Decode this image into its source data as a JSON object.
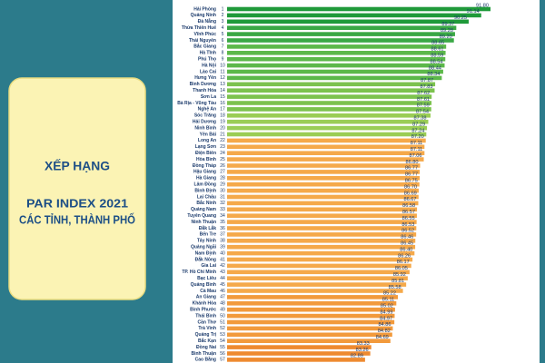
{
  "chart_data": {
    "type": "bar",
    "orientation": "horizontal",
    "title_lines": [
      "XẾP HẠNG",
      "PAR INDEX 2021",
      "CÁC TỈNH, THÀNH PHỐ"
    ],
    "categories": [
      "Hải Phòng",
      "Quảng Ninh",
      "Đà Nẵng",
      "Thừa Thiên Huế",
      "Vĩnh Phúc",
      "Thái Nguyên",
      "Bắc Giang",
      "Hà Tĩnh",
      "Phú Thọ",
      "Hà Nội",
      "Lào Cai",
      "Hưng Yên",
      "Bình Dương",
      "Thanh Hóa",
      "Sơn La",
      "Bà Rịa - Vũng Tàu",
      "Nghệ An",
      "Sóc Trăng",
      "Hải Dương",
      "Ninh Bình",
      "Yên Bái",
      "Long An",
      "Lạng Sơn",
      "Điện Biên",
      "Hòa Bình",
      "Đồng Tháp",
      "Hậu Giang",
      "Hà Giang",
      "Lâm Đồng",
      "Bình Định",
      "Lai Châu",
      "Bắc Ninh",
      "Quảng Nam",
      "Tuyên Quang",
      "Ninh Thuận",
      "Đắk Lắk",
      "Bến Tre",
      "Tây Ninh",
      "Quảng Ngãi",
      "Nam Định",
      "Đắk Nông",
      "Gia Lai",
      "TP. Hồ Chí Minh",
      "Bạc Liêu",
      "Quảng Bình",
      "Cà Mau",
      "An Giang",
      "Khánh Hòa",
      "Bình Phước",
      "Thái Bình",
      "Cần Thơ",
      "Trà Vinh",
      "Quảng Trị",
      "Bắc Kạn",
      "Đồng Nai",
      "Bình Thuận",
      "Cao Bằng"
    ],
    "ranks": [
      1,
      2,
      3,
      4,
      5,
      6,
      7,
      8,
      9,
      10,
      11,
      12,
      13,
      14,
      15,
      16,
      17,
      18,
      19,
      20,
      21,
      22,
      23,
      24,
      25,
      26,
      27,
      28,
      29,
      30,
      31,
      32,
      33,
      34,
      35,
      36,
      37,
      38,
      39,
      40,
      41,
      42,
      43,
      44,
      45,
      46,
      47,
      48,
      49,
      50,
      51,
      52,
      53,
      54,
      55,
      56,
      57
    ],
    "values": [
      91.8,
      91.14,
      90.25,
      89.37,
      89.28,
      89.2,
      88.65,
      88.61,
      88.59,
      88.54,
      88.44,
      88.34,
      87.87,
      87.83,
      87.62,
      87.61,
      87.59,
      87.54,
      87.38,
      87.29,
      87.24,
      87.2,
      87.11,
      87.11,
      87.06,
      86.8,
      86.77,
      86.77,
      86.75,
      86.7,
      86.69,
      86.67,
      86.58,
      86.57,
      86.55,
      86.53,
      86.52,
      86.46,
      86.45,
      86.4,
      86.26,
      86.17,
      86.05,
      85.92,
      85.81,
      85.58,
      85.22,
      85.11,
      85.02,
      84.99,
      84.97,
      84.86,
      84.82,
      84.69,
      83.33,
      83.26,
      82.89
    ],
    "value_labels": [
      "91.80",
      "91.14",
      "90.25",
      "89.37",
      "89.28",
      "89.20",
      "88.65",
      "88.61",
      "88.59",
      "88.54",
      "88.44",
      "88.34",
      "87.87",
      "87.83",
      "87.62",
      "87.61",
      "87.59",
      "87.54",
      "87.38",
      "87.29",
      "87.24",
      "87.20",
      "87.11",
      "87.11",
      "87.06",
      "86.80",
      "86.77",
      "86.77",
      "86.75",
      "86.70",
      "86.69",
      "86.67",
      "86.58",
      "86.57",
      "86.55",
      "86.53",
      "86.52",
      "86.46",
      "86.45",
      "86.40",
      "86.26",
      "86.17",
      "86.05",
      "85.92",
      "85.81",
      "85.58",
      "85.22",
      "85.11",
      "85.02",
      "84.99",
      "84.97",
      "84.86",
      "84.82",
      "84.69",
      "83.33",
      "83.26",
      "82.89"
    ],
    "colors": [
      "#1f9a3a",
      "#1f9a3a",
      "#1f9a3a",
      "#3aa845",
      "#3aa845",
      "#3aa845",
      "#5cb84a",
      "#5cb84a",
      "#5cb84a",
      "#5cb84a",
      "#5cb84a",
      "#5cb84a",
      "#7cc24e",
      "#7cc24e",
      "#7cc24e",
      "#7cc24e",
      "#7cc24e",
      "#9acd55",
      "#9acd55",
      "#9acd55",
      "#9acd55",
      "#f5a94a",
      "#f5a94a",
      "#f5a94a",
      "#f5a94a",
      "#f5a94a",
      "#f5a94a",
      "#f5a94a",
      "#f5a94a",
      "#f5a94a",
      "#f5a94a",
      "#f5a94a",
      "#f5a94a",
      "#f5a94a",
      "#f5a94a",
      "#f5a94a",
      "#f5a94a",
      "#f5a94a",
      "#f5a94a",
      "#f5a94a",
      "#f5a94a",
      "#f5a94a",
      "#f5a94a",
      "#f5a94a",
      "#f5a94a",
      "#f5a94a",
      "#f29a3c",
      "#f29a3c",
      "#f29a3c",
      "#f29a3c",
      "#f29a3c",
      "#f29a3c",
      "#f29a3c",
      "#f29a3c",
      "#ee8a30",
      "#ee8a30",
      "#ee8a30"
    ]
  }
}
